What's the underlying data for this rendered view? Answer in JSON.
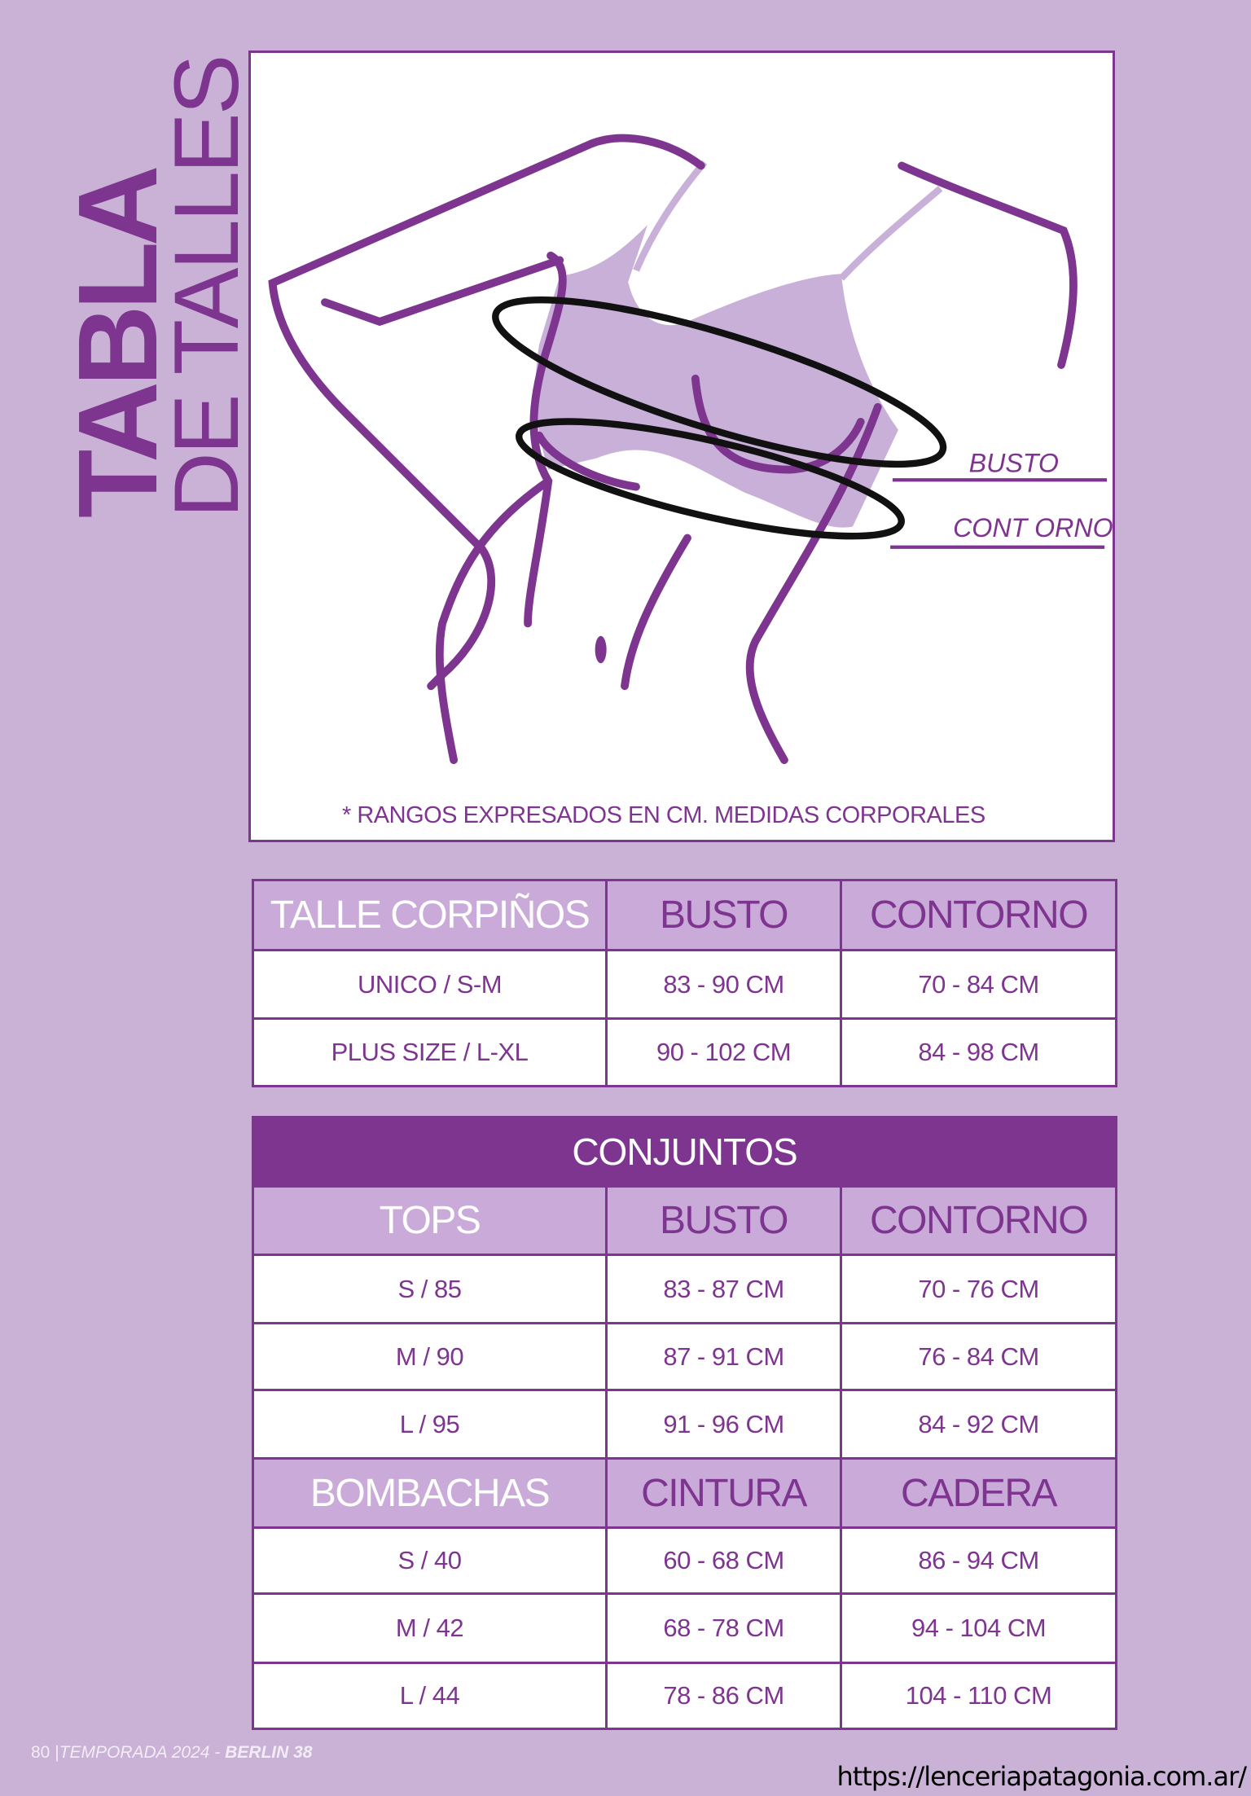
{
  "title": {
    "line1": "TABLA",
    "line2": "DE TALLES"
  },
  "illustration": {
    "labels": {
      "busto": "BUSTO",
      "contorno": "CONT ORNO"
    },
    "note": "* RANGOS EXPRESADOS EN CM. MEDIDAS CORPORALES"
  },
  "colors": {
    "background": "#c9b2d6",
    "accent": "#7e3590",
    "header_cell": "#c9aad8"
  },
  "corpinos": {
    "headers": [
      "TALLE CORPIÑOS",
      "BUSTO",
      "CONTORNO"
    ],
    "rows": [
      [
        "UNICO / S-M",
        "83  - 90  CM",
        "70 - 84 CM"
      ],
      [
        "PLUS SIZE / L-XL",
        "90 - 102 CM",
        "84 - 98 CM"
      ]
    ]
  },
  "conjuntos": {
    "title": "CONJUNTOS",
    "tops_headers": [
      "TOPS",
      "BUSTO",
      "CONTORNO"
    ],
    "tops_rows": [
      [
        "S / 85",
        "83 - 87  CM",
        "70 - 76 CM"
      ],
      [
        "M / 90",
        "87 - 91 CM",
        "76 - 84 CM"
      ],
      [
        "L / 95",
        "91 - 96 CM",
        "84 - 92 CM"
      ]
    ],
    "bombachas_headers": [
      "BOMBACHAS",
      "CINTURA",
      "CADERA"
    ],
    "bombachas_rows": [
      [
        "S / 40",
        "60 - 68  CM",
        "86 - 94 CM"
      ],
      [
        "M / 42",
        "68 - 78 CM",
        "94 - 104 CM"
      ],
      [
        "L / 44",
        "78 - 86 CM",
        "104 - 110 CM"
      ]
    ]
  },
  "footer": {
    "page": "80",
    "season": "TEMPORADA 2024 - ",
    "brand": "BERLIN 38",
    "url": "https://lenceriapatagonia.com.ar/"
  }
}
